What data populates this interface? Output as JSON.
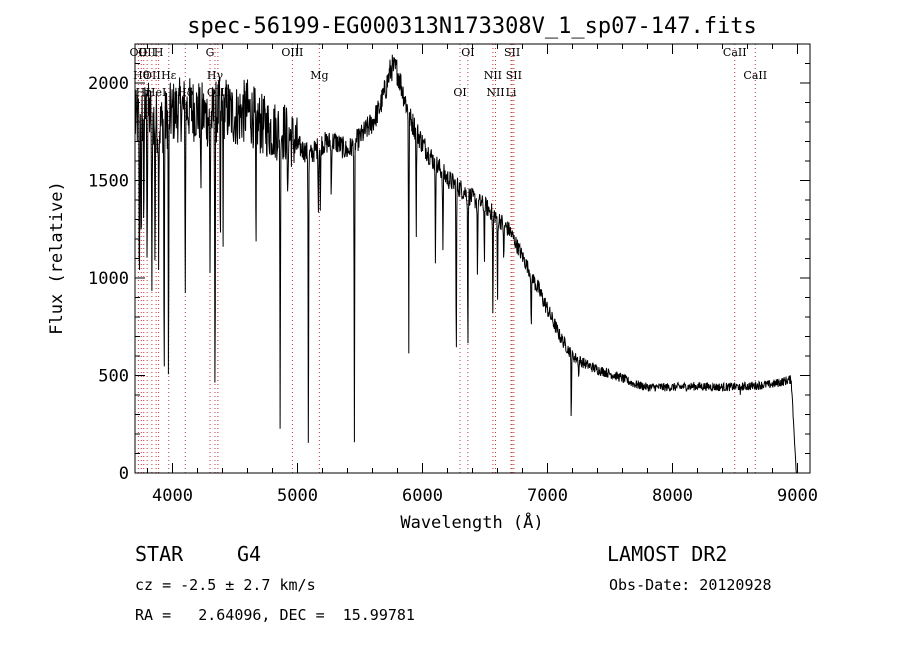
{
  "chart_data": {
    "type": "line",
    "title": "spec-56199-EG000313N173308V_1_sp07-147.fits",
    "xlabel": "Wavelength (Å)",
    "ylabel": "Flux (relative)",
    "xlim": [
      3700,
      9100
    ],
    "ylim": [
      0,
      2200
    ],
    "x_ticks": [
      4000,
      5000,
      6000,
      7000,
      8000,
      9000
    ],
    "y_ticks": [
      0,
      500,
      1000,
      1500,
      2000
    ],
    "grid": false,
    "legend": "none",
    "continuum": {
      "x": [
        3700,
        3800,
        3900,
        4000,
        4100,
        4200,
        4300,
        4400,
        4500,
        4600,
        4700,
        4800,
        4900,
        5000,
        5100,
        5200,
        5300,
        5400,
        5500,
        5600,
        5650,
        5700,
        5750,
        5800,
        5850,
        5900,
        6000,
        6100,
        6200,
        6300,
        6400,
        6500,
        6600,
        6700,
        6800,
        6900,
        7000,
        7100,
        7200,
        7300,
        7400,
        7500,
        7600,
        7700,
        7800,
        8000,
        8200,
        8400,
        8600,
        8800,
        8950,
        8990
      ],
      "y": [
        1800,
        1850,
        1780,
        1850,
        1870,
        1860,
        1820,
        1880,
        1830,
        1860,
        1790,
        1760,
        1750,
        1680,
        1630,
        1690,
        1700,
        1650,
        1720,
        1800,
        1860,
        1960,
        2080,
        2060,
        1940,
        1820,
        1690,
        1590,
        1510,
        1460,
        1410,
        1370,
        1310,
        1240,
        1110,
        980,
        840,
        700,
        600,
        560,
        530,
        510,
        485,
        455,
        440,
        440,
        445,
        440,
        445,
        455,
        480,
        0
      ]
    },
    "absorption_lines": {
      "x": [
        3735,
        3750,
        3770,
        3797,
        3835,
        3860,
        3889,
        3933,
        3968,
        4102,
        4226,
        4300,
        4340,
        4383,
        4405,
        4668,
        4861,
        4921,
        5087,
        5167,
        5183,
        5270,
        5455,
        5890,
        5950,
        6103,
        6163,
        6270,
        6363,
        6440,
        6495,
        6563,
        6600,
        6650,
        6870,
        7190,
        7250,
        8542
      ],
      "y": [
        850,
        1100,
        1300,
        1150,
        820,
        1100,
        1200,
        350,
        400,
        900,
        1400,
        1000,
        350,
        1100,
        1300,
        1000,
        140,
        1300,
        30,
        1350,
        1300,
        1400,
        100,
        640,
        1200,
        1100,
        1100,
        520,
        630,
        1000,
        1100,
        760,
        850,
        1050,
        700,
        290,
        480,
        390
      ]
    },
    "line_markers": {
      "x": [
        3727,
        3750,
        3770,
        3797,
        3835,
        3869,
        3889,
        3970,
        4102,
        4300,
        4340,
        4363,
        4959,
        5175,
        6300,
        6363,
        6563,
        6584,
        6717,
        6731,
        6708,
        8498,
        8662
      ],
      "labels": [
        "OII",
        "Hθ",
        "Hη",
        "OII",
        "OII",
        "HeI",
        "H",
        "Hε",
        "Hδ",
        "G",
        "Hγ",
        "OIII",
        "OIII",
        "Mg",
        "OI",
        "OI",
        "NII",
        "NII",
        "SII",
        "SII",
        "Li",
        "CaII",
        "CaII"
      ]
    },
    "marker_color": "#cc3333"
  },
  "info": {
    "obj_class": "STAR",
    "subclass": "G4",
    "survey": "LAMOST DR2",
    "cz": "cz = -2.5 ± 2.7 km/s",
    "obs_date": "Obs-Date: 20120928",
    "coords": "RA =   2.64096, DEC =  15.99781"
  }
}
